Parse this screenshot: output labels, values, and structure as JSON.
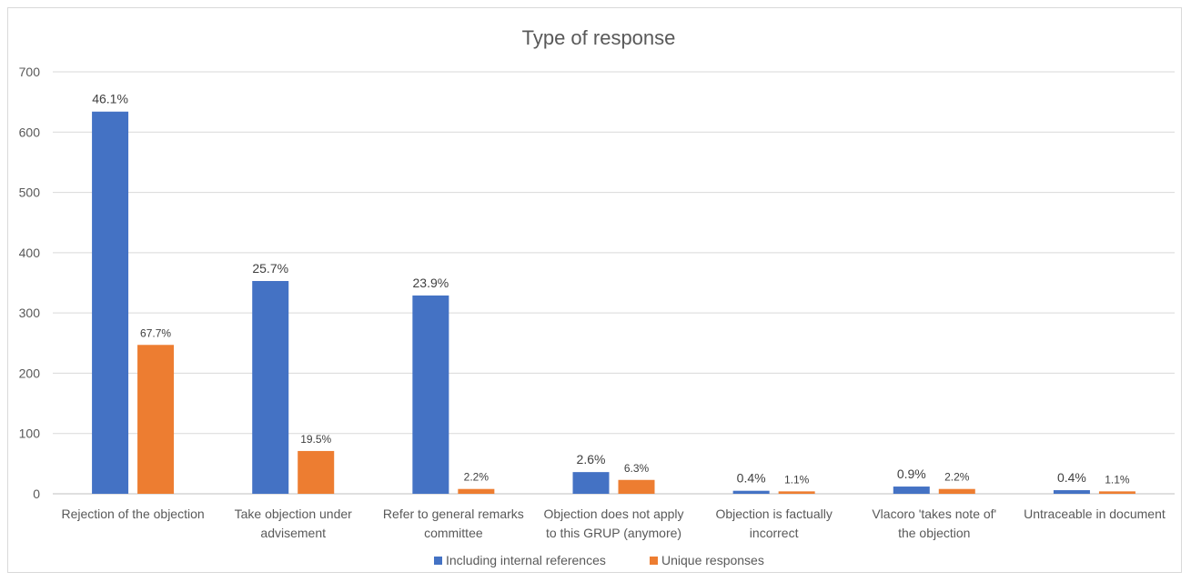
{
  "chart_data": {
    "type": "bar",
    "title": "Type of response",
    "xlabel": "",
    "ylabel": "",
    "ylim": [
      0,
      700
    ],
    "yticks": [
      0,
      100,
      200,
      300,
      400,
      500,
      600,
      700
    ],
    "grid": true,
    "legend_position": "bottom",
    "categories": [
      [
        "Rejection of the objection"
      ],
      [
        "Take objection under",
        "advisement"
      ],
      [
        "Refer to general remarks",
        "committee"
      ],
      [
        "Objection does not apply",
        "to this GRUP (anymore)"
      ],
      [
        "Objection is factually",
        "incorrect"
      ],
      [
        "Vlacoro 'takes note of'",
        "the objection"
      ],
      [
        "Untraceable in document"
      ]
    ],
    "series": [
      {
        "name": "Including internal references",
        "color": "#4472c4",
        "values": [
          634,
          353,
          329,
          36,
          5,
          12,
          6
        ],
        "labels": [
          "46.1%",
          "25.7%",
          "23.9%",
          "2.6%",
          "0.4%",
          "0.9%",
          "0.4%"
        ]
      },
      {
        "name": "Unique responses",
        "color": "#ed7d31",
        "values": [
          247,
          71,
          8,
          23,
          4,
          8,
          4
        ],
        "labels": [
          "67.7%",
          "19.5%",
          "2.2%",
          "6.3%",
          "1.1%",
          "2.2%",
          "1.1%"
        ]
      }
    ]
  }
}
